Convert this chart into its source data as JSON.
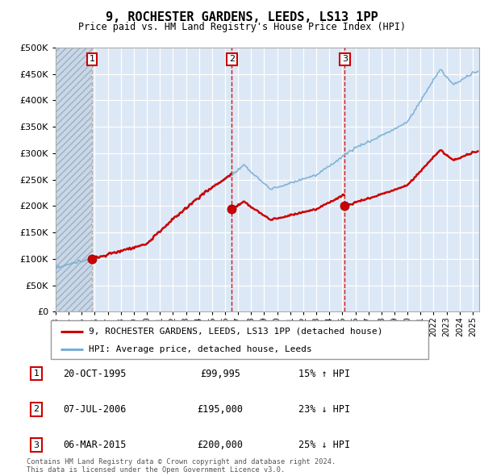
{
  "title": "9, ROCHESTER GARDENS, LEEDS, LS13 1PP",
  "subtitle": "Price paid vs. HM Land Registry's House Price Index (HPI)",
  "legend_property": "9, ROCHESTER GARDENS, LEEDS, LS13 1PP (detached house)",
  "legend_hpi": "HPI: Average price, detached house, Leeds",
  "copyright": "Contains HM Land Registry data © Crown copyright and database right 2024.\nThis data is licensed under the Open Government Licence v3.0.",
  "sales": [
    {
      "num": 1,
      "date": "20-OCT-1995",
      "price": 99995,
      "year": 1995.79,
      "pct": "15%",
      "dir": "↑"
    },
    {
      "num": 2,
      "date": "07-JUL-2006",
      "price": 195000,
      "year": 2006.51,
      "pct": "23%",
      "dir": "↓"
    },
    {
      "num": 3,
      "date": "06-MAR-2015",
      "price": 200000,
      "year": 2015.18,
      "pct": "25%",
      "dir": "↓"
    }
  ],
  "ylim": [
    0,
    500000
  ],
  "xlim_start": 1993.0,
  "xlim_end": 2025.5,
  "property_color": "#cc0000",
  "hpi_color": "#7aadd4",
  "background_chart": "#dce8f5",
  "grid_color": "#ffffff"
}
